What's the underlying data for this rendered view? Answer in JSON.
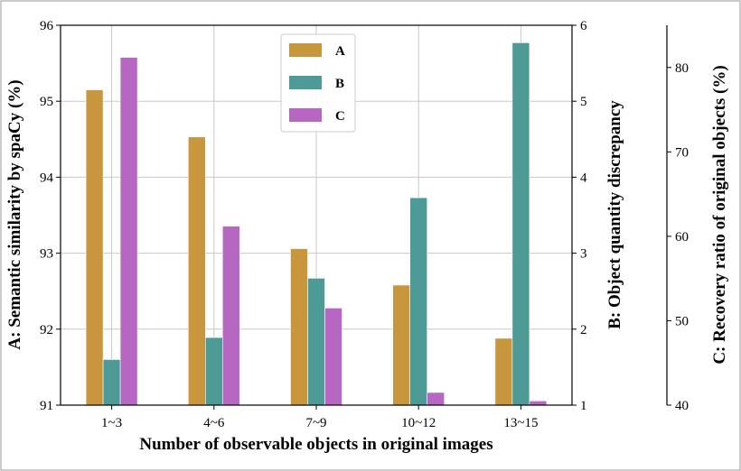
{
  "chart_data": {
    "type": "bar",
    "xlabel": "Number of observable objects in original images",
    "categories": [
      "1~3",
      "4~6",
      "7~9",
      "10~12",
      "13~15"
    ],
    "grid": true,
    "legend_position": "top-center",
    "axes": {
      "A": {
        "label": "A: Semantic similarity by spaCy (%)",
        "lim": [
          91,
          96
        ],
        "ticks": [
          "91",
          "92",
          "93",
          "94",
          "95",
          "96"
        ]
      },
      "B": {
        "label": "B: Object quantity discrepancy",
        "lim": [
          1,
          6
        ],
        "ticks": [
          "1",
          "2",
          "3",
          "4",
          "5",
          "6"
        ]
      },
      "C": {
        "label": "C: Recovery ratio of original objects (%)",
        "lim": [
          40,
          85
        ],
        "ticks": [
          "40",
          "50",
          "60",
          "70",
          "80"
        ]
      }
    },
    "series": [
      {
        "name": "A",
        "axis": "A",
        "color": "#c8963c",
        "values": [
          95.15,
          94.53,
          93.06,
          92.58,
          91.88
        ]
      },
      {
        "name": "B",
        "axis": "B",
        "color": "#4e9a96",
        "values": [
          1.6,
          1.89,
          2.67,
          3.73,
          5.77
        ]
      },
      {
        "name": "C",
        "axis": "C",
        "color": "#b567c2",
        "values": [
          81.2,
          61.2,
          51.5,
          41.5,
          40.5
        ]
      }
    ]
  }
}
